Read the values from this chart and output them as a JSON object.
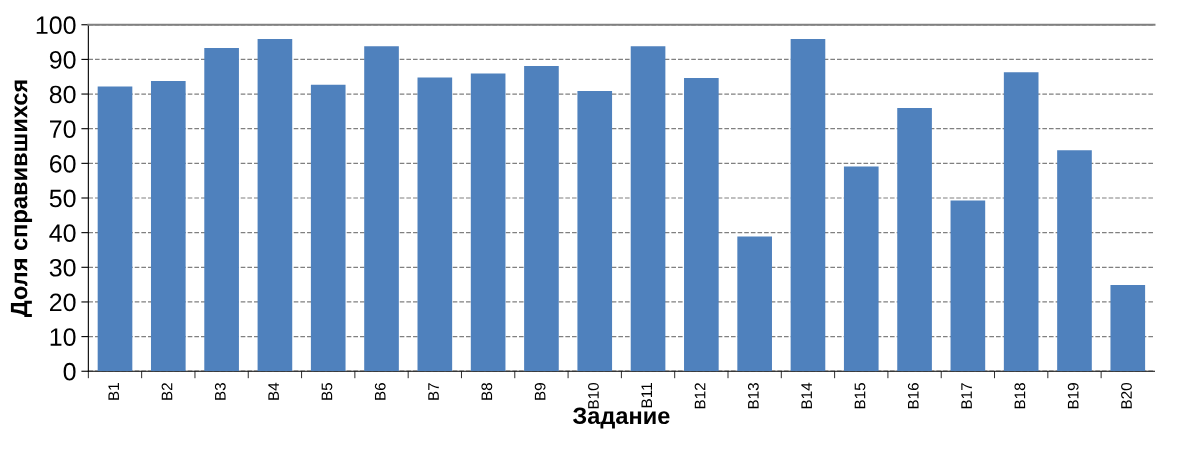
{
  "chart_data": {
    "type": "bar",
    "xlabel": "Задание",
    "ylabel": "Доля справившихся",
    "categories": [
      "В1",
      "В2",
      "В3",
      "В4",
      "В5",
      "В6",
      "В7",
      "В8",
      "В9",
      "В10",
      "В11",
      "В12",
      "В13",
      "В14",
      "В15",
      "В16",
      "В17",
      "В18",
      "В19",
      "В20"
    ],
    "values": [
      82.2,
      83.8,
      93.3,
      95.9,
      82.7,
      93.8,
      84.8,
      85.9,
      88.1,
      80.9,
      93.8,
      84.6,
      38.9,
      95.9,
      59.1,
      76.0,
      49.3,
      86.3,
      63.8,
      24.9
    ],
    "color": "#4f81bd",
    "ylim": [
      0,
      100
    ],
    "yticks": [
      0,
      10,
      20,
      30,
      40,
      50,
      60,
      70,
      80,
      90,
      100
    ],
    "grid": "y"
  }
}
